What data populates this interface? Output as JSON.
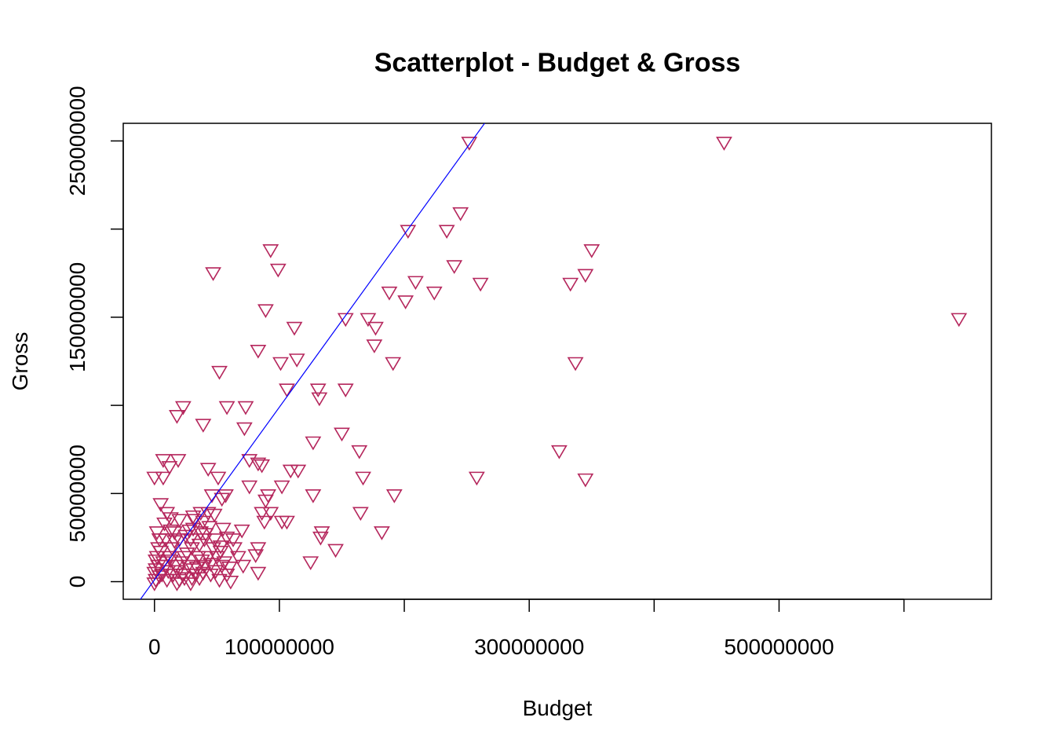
{
  "chart_data": {
    "type": "scatter",
    "title": "Scatterplot - Budget & Gross",
    "xlabel": "Budget",
    "ylabel": "Gross",
    "xlim": [
      -25000000,
      670000000
    ],
    "ylim": [
      -10000000,
      260000000
    ],
    "x_ticks": [
      0,
      100000000,
      200000000,
      300000000,
      400000000,
      500000000,
      600000000
    ],
    "x_tick_labels": [
      "0",
      "100000000",
      "",
      "300000000",
      "",
      "500000000",
      ""
    ],
    "y_ticks": [
      0,
      50000000,
      100000000,
      150000000,
      200000000,
      250000000
    ],
    "y_tick_labels": [
      "0",
      "50000000",
      "",
      "150000000",
      "",
      "250000000"
    ],
    "point_shape": "triangle-down",
    "colors": {
      "points": "#B5265C",
      "line": "#0000FF",
      "axis": "#000000"
    },
    "regression_line": {
      "slope": 0.98,
      "intercept": 1000000
    },
    "points": [
      [
        252000000,
        249000000
      ],
      [
        456000000,
        249000000
      ],
      [
        245000000,
        209000000
      ],
      [
        203000000,
        199000000
      ],
      [
        234000000,
        199000000
      ],
      [
        93000000,
        188000000
      ],
      [
        350000000,
        188000000
      ],
      [
        240000000,
        179000000
      ],
      [
        99000000,
        177000000
      ],
      [
        47000000,
        175000000
      ],
      [
        345000000,
        174000000
      ],
      [
        209000000,
        170000000
      ],
      [
        261000000,
        169000000
      ],
      [
        333000000,
        169000000
      ],
      [
        188000000,
        164000000
      ],
      [
        224000000,
        164000000
      ],
      [
        201000000,
        159000000
      ],
      [
        89000000,
        154000000
      ],
      [
        153000000,
        149000000
      ],
      [
        171000000,
        149000000
      ],
      [
        177000000,
        144000000
      ],
      [
        112000000,
        144000000
      ],
      [
        644000000,
        149000000
      ],
      [
        176000000,
        134000000
      ],
      [
        83000000,
        131000000
      ],
      [
        114000000,
        126000000
      ],
      [
        101000000,
        124000000
      ],
      [
        191000000,
        124000000
      ],
      [
        337000000,
        124000000
      ],
      [
        52000000,
        119000000
      ],
      [
        106000000,
        109000000
      ],
      [
        131000000,
        109000000
      ],
      [
        153000000,
        109000000
      ],
      [
        132000000,
        104000000
      ],
      [
        23000000,
        99000000
      ],
      [
        58000000,
        99000000
      ],
      [
        73000000,
        99000000
      ],
      [
        18000000,
        94000000
      ],
      [
        39000000,
        89000000
      ],
      [
        72000000,
        87000000
      ],
      [
        150000000,
        84000000
      ],
      [
        127000000,
        79000000
      ],
      [
        164000000,
        74000000
      ],
      [
        324000000,
        74000000
      ],
      [
        76000000,
        69000000
      ],
      [
        7000000,
        69000000
      ],
      [
        19000000,
        69000000
      ],
      [
        83000000,
        67000000
      ],
      [
        86000000,
        66000000
      ],
      [
        12000000,
        65000000
      ],
      [
        43000000,
        64000000
      ],
      [
        109000000,
        63000000
      ],
      [
        115000000,
        63000000
      ],
      [
        0,
        59000000
      ],
      [
        7000000,
        59000000
      ],
      [
        51000000,
        59000000
      ],
      [
        167000000,
        59000000
      ],
      [
        258000000,
        59000000
      ],
      [
        345000000,
        58000000
      ],
      [
        76000000,
        54000000
      ],
      [
        102000000,
        54000000
      ],
      [
        57000000,
        49000000
      ],
      [
        91000000,
        49000000
      ],
      [
        127000000,
        49000000
      ],
      [
        192000000,
        49000000
      ],
      [
        46000000,
        49000000
      ],
      [
        54000000,
        47000000
      ],
      [
        89000000,
        46000000
      ],
      [
        5000000,
        44000000
      ],
      [
        10000000,
        39000000
      ],
      [
        86000000,
        39000000
      ],
      [
        93000000,
        39000000
      ],
      [
        165000000,
        39000000
      ],
      [
        37000000,
        39000000
      ],
      [
        43000000,
        39000000
      ],
      [
        48000000,
        38000000
      ],
      [
        13000000,
        36000000
      ],
      [
        20000000,
        35000000
      ],
      [
        32000000,
        35000000
      ],
      [
        88000000,
        34000000
      ],
      [
        102000000,
        34000000
      ],
      [
        106000000,
        34000000
      ],
      [
        39000000,
        34000000
      ],
      [
        55000000,
        30000000
      ],
      [
        70000000,
        29000000
      ],
      [
        13000000,
        29000000
      ],
      [
        28000000,
        29000000
      ],
      [
        134000000,
        28000000
      ],
      [
        182000000,
        28000000
      ],
      [
        133000000,
        25000000
      ],
      [
        4000000,
        24000000
      ],
      [
        25000000,
        26000000
      ],
      [
        40000000,
        24000000
      ],
      [
        63000000,
        24000000
      ],
      [
        20000000,
        24000000
      ],
      [
        48000000,
        24000000
      ],
      [
        145000000,
        18000000
      ],
      [
        83000000,
        19000000
      ],
      [
        3000000,
        19000000
      ],
      [
        14000000,
        19000000
      ],
      [
        30000000,
        19000000
      ],
      [
        53000000,
        20000000
      ],
      [
        81000000,
        15000000
      ],
      [
        67000000,
        14000000
      ],
      [
        2000000,
        14000000
      ],
      [
        12000000,
        14000000
      ],
      [
        24000000,
        14000000
      ],
      [
        35000000,
        14000000
      ],
      [
        43000000,
        14000000
      ],
      [
        50000000,
        14000000
      ],
      [
        125000000,
        11000000
      ],
      [
        71000000,
        9000000
      ],
      [
        3000000,
        9000000
      ],
      [
        9000000,
        9000000
      ],
      [
        17000000,
        9000000
      ],
      [
        27000000,
        9000000
      ],
      [
        40000000,
        9000000
      ],
      [
        54000000,
        9000000
      ],
      [
        60000000,
        8000000
      ],
      [
        83000000,
        5000000
      ],
      [
        0,
        5000000
      ],
      [
        6000000,
        4000000
      ],
      [
        15000000,
        4000000
      ],
      [
        23000000,
        4000000
      ],
      [
        33000000,
        4000000
      ],
      [
        45000000,
        4000000
      ],
      [
        58000000,
        4000000
      ],
      [
        1000000,
        1000000
      ],
      [
        10000000,
        1000000
      ],
      [
        20000000,
        1000000
      ],
      [
        30000000,
        2000000
      ],
      [
        36000000,
        2000000
      ],
      [
        52000000,
        1000000
      ],
      [
        61000000,
        0
      ],
      [
        0,
        -1000000
      ],
      [
        18000000,
        -1000000
      ],
      [
        29000000,
        -1000000
      ],
      [
        2000000,
        28000000
      ],
      [
        8000000,
        33000000
      ],
      [
        16000000,
        23000000
      ],
      [
        31000000,
        30000000
      ],
      [
        36000000,
        21000000
      ],
      [
        41000000,
        27000000
      ],
      [
        47000000,
        19000000
      ],
      [
        58000000,
        25000000
      ],
      [
        1000000,
        12000000
      ],
      [
        5000000,
        17000000
      ],
      [
        11000000,
        6000000
      ],
      [
        22000000,
        11000000
      ],
      [
        26000000,
        16000000
      ],
      [
        34000000,
        8000000
      ],
      [
        38000000,
        12000000
      ],
      [
        45000000,
        10000000
      ],
      [
        49000000,
        6000000
      ],
      [
        56000000,
        11000000
      ],
      [
        1000000,
        7000000
      ],
      [
        4000000,
        3000000
      ],
      [
        7000000,
        11000000
      ],
      [
        13000000,
        12000000
      ],
      [
        19000000,
        6000000
      ],
      [
        24000000,
        2000000
      ],
      [
        31000000,
        7000000
      ],
      [
        39000000,
        5000000
      ],
      [
        53000000,
        17000000
      ],
      [
        64000000,
        19000000
      ],
      [
        29000000,
        24000000
      ],
      [
        37000000,
        28000000
      ],
      [
        44000000,
        31000000
      ],
      [
        31000000,
        37000000
      ],
      [
        9000000,
        24000000
      ],
      [
        16000000,
        28000000
      ]
    ]
  }
}
